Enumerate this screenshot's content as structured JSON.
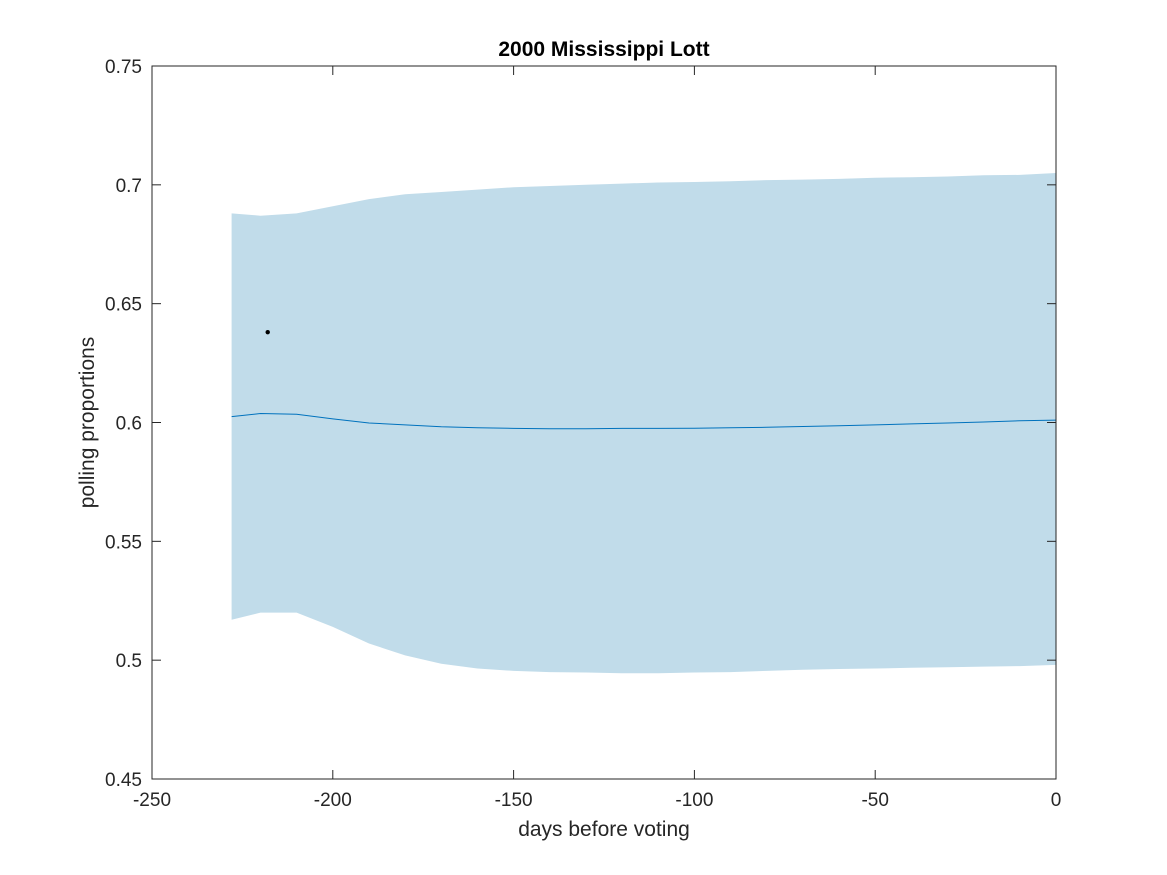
{
  "chart_data": {
    "type": "line",
    "title": "2000 Mississippi Lott",
    "xlabel": "days before voting",
    "ylabel": "polling proportions",
    "xlim": [
      -250,
      0
    ],
    "ylim": [
      0.45,
      0.75
    ],
    "x_ticks": [
      -250,
      -200,
      -150,
      -100,
      -50,
      0
    ],
    "y_ticks": [
      0.45,
      0.5,
      0.55,
      0.6,
      0.65,
      0.7,
      0.75
    ],
    "x_tick_labels": [
      "-250",
      "-200",
      "-150",
      "-100",
      "-50",
      "0"
    ],
    "y_tick_labels": [
      "0.45",
      "0.5",
      "0.55",
      "0.6",
      "0.65",
      "0.7",
      "0.75"
    ],
    "grid": false,
    "band": {
      "x": [
        -228,
        -220,
        -210,
        -200,
        -190,
        -180,
        -170,
        -160,
        -150,
        -140,
        -130,
        -120,
        -110,
        -100,
        -90,
        -80,
        -70,
        -60,
        -50,
        -40,
        -30,
        -20,
        -10,
        0
      ],
      "upper": [
        0.688,
        0.687,
        0.688,
        0.691,
        0.694,
        0.696,
        0.697,
        0.698,
        0.699,
        0.6995,
        0.7,
        0.7005,
        0.701,
        0.7012,
        0.7015,
        0.702,
        0.7022,
        0.7025,
        0.703,
        0.7032,
        0.7035,
        0.704,
        0.7042,
        0.705
      ],
      "lower": [
        0.517,
        0.52,
        0.52,
        0.514,
        0.507,
        0.502,
        0.4985,
        0.4965,
        0.4955,
        0.495,
        0.4948,
        0.4945,
        0.4945,
        0.4948,
        0.495,
        0.4955,
        0.496,
        0.4963,
        0.4965,
        0.4968,
        0.497,
        0.4973,
        0.4975,
        0.498
      ],
      "color": "#c1dcea"
    },
    "series": [
      {
        "x": [
          -228,
          -220,
          -210,
          -200,
          -190,
          -180,
          -170,
          -160,
          -150,
          -140,
          -130,
          -120,
          -110,
          -100,
          -90,
          -80,
          -70,
          -60,
          -50,
          -40,
          -30,
          -20,
          -10,
          0
        ],
        "values": [
          0.6025,
          0.6038,
          0.6035,
          0.6015,
          0.5998,
          0.599,
          0.5982,
          0.5978,
          0.5975,
          0.5974,
          0.5974,
          0.5975,
          0.5975,
          0.5976,
          0.5978,
          0.598,
          0.5983,
          0.5986,
          0.599,
          0.5994,
          0.5998,
          0.6002,
          0.6007,
          0.601
        ],
        "color": "#0072bd"
      }
    ],
    "points": [
      {
        "x": -218,
        "y": 0.638,
        "color": "#000000"
      }
    ],
    "axis_color": "#262626"
  }
}
